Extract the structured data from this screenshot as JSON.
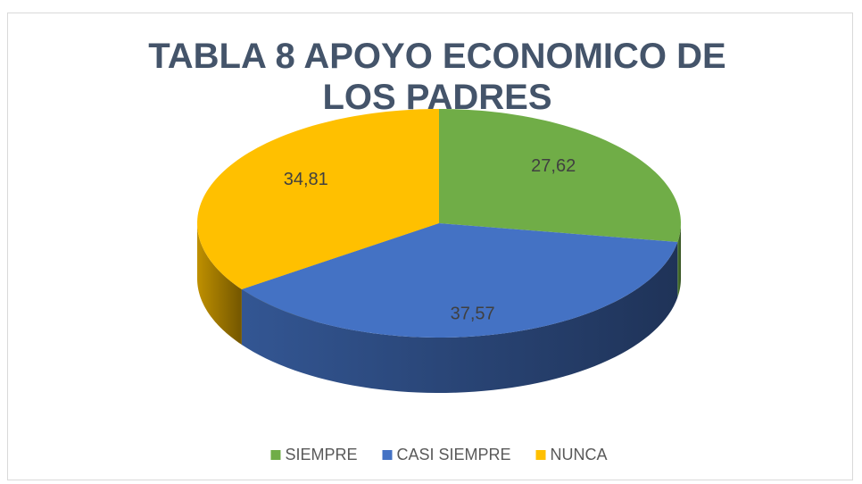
{
  "chart_data": {
    "type": "pie3d",
    "title": "TABLA 8 APOYO ECONOMICO DE LOS PADRES",
    "categories": [
      "SIEMPRE",
      "CASI SIEMPRE",
      "NUNCA"
    ],
    "values": [
      27.62,
      37.57,
      34.81
    ],
    "value_labels": [
      "27,62",
      "37,57",
      "34,81"
    ],
    "colors": [
      "#70ad47",
      "#4472c4",
      "#ffc000"
    ],
    "legend": "bottom"
  }
}
